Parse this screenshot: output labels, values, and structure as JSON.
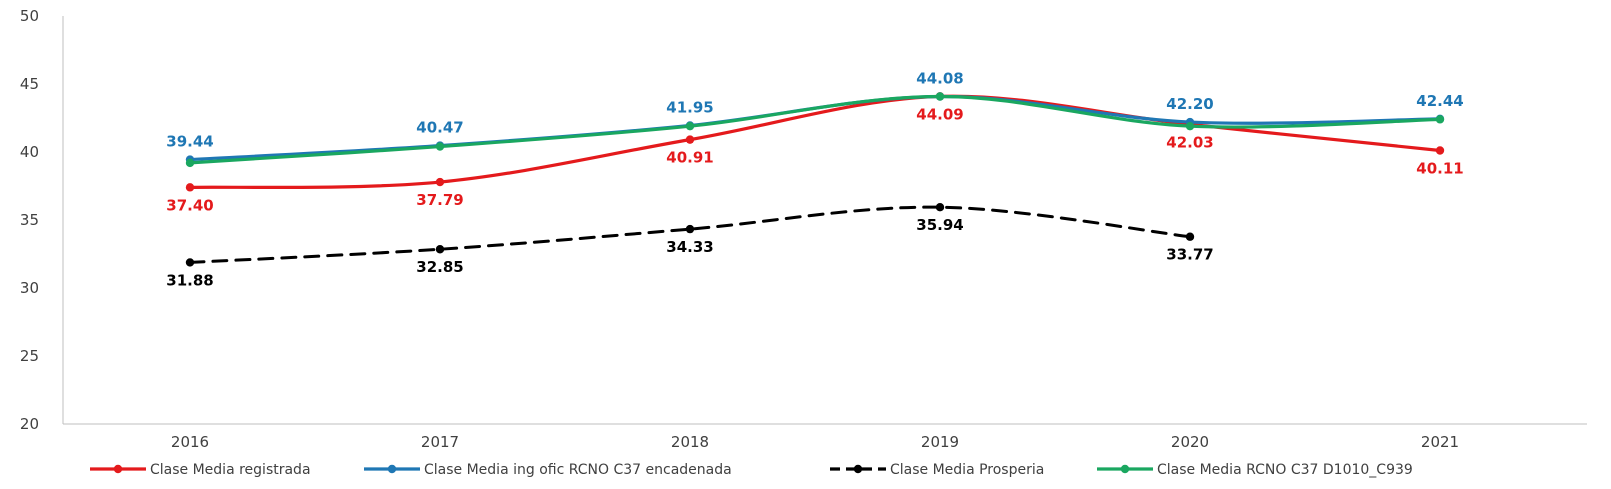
{
  "chart_data": {
    "type": "line",
    "title": "",
    "xlabel": "",
    "ylabel": "",
    "ylim": [
      20,
      50
    ],
    "yticks": [
      20,
      25,
      30,
      35,
      40,
      45,
      50
    ],
    "categories": [
      "2016",
      "2017",
      "2018",
      "2019",
      "2020",
      "2021"
    ],
    "grid": false,
    "legend_position": "bottom",
    "series": [
      {
        "name": "Clase Media registrada",
        "color": "#e41a1c",
        "dashed": false,
        "values": [
          37.4,
          37.79,
          40.91,
          44.09,
          42.03,
          40.11
        ],
        "labels": [
          "37.40",
          "37.79",
          "40.91",
          "44.09",
          "42.03",
          "40.11"
        ],
        "label_position": "below"
      },
      {
        "name": "Clase Media ing ofic RCNO C37 encadenada",
        "color": "#1f77b4",
        "dashed": false,
        "values": [
          39.44,
          40.47,
          41.95,
          44.08,
          42.2,
          42.44
        ],
        "labels": [
          "39.44",
          "40.47",
          "41.95",
          "44.08",
          "42.20",
          "42.44"
        ],
        "label_position": "above"
      },
      {
        "name": "Clase Media Prosperia",
        "color": "#000000",
        "dashed": true,
        "values": [
          31.88,
          32.85,
          34.33,
          35.94,
          33.77,
          null
        ],
        "labels": [
          "31.88",
          "32.85",
          "34.33",
          "35.94",
          "33.77",
          ""
        ],
        "label_position": "below"
      },
      {
        "name": "Clase Media RCNO C37 D1010_C939",
        "color": "#1aa760",
        "dashed": false,
        "values": [
          39.2,
          40.4,
          41.9,
          44.08,
          41.9,
          42.4
        ],
        "labels": [],
        "label_position": "none"
      }
    ]
  }
}
